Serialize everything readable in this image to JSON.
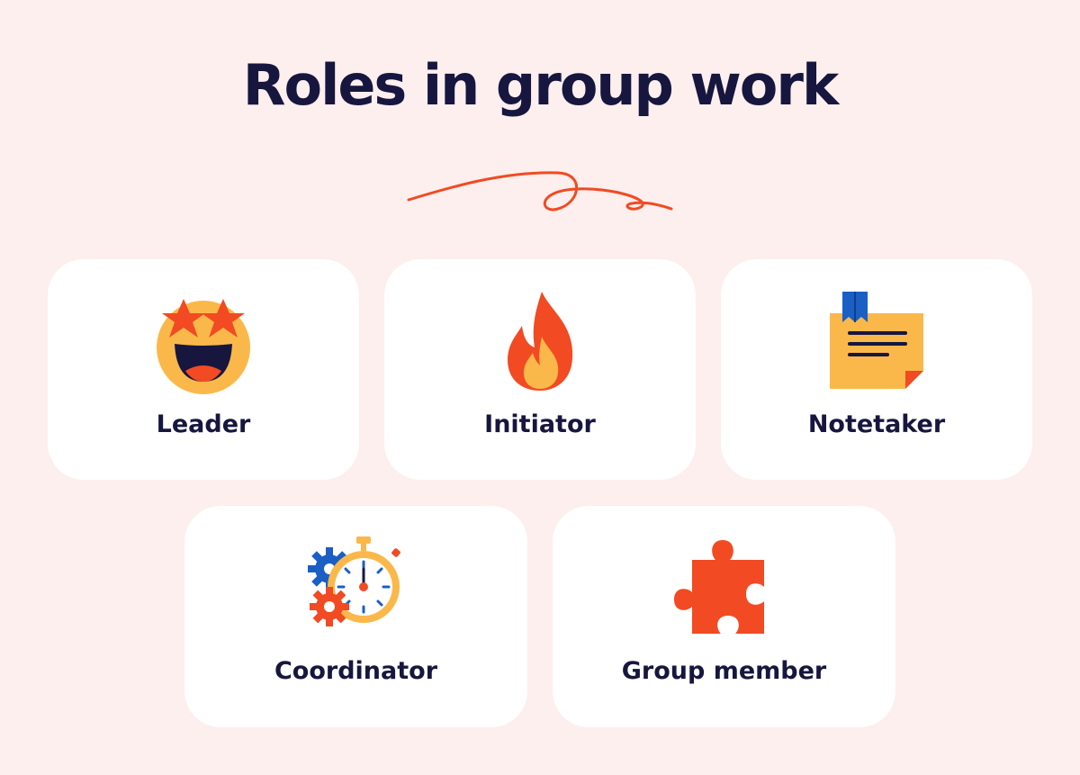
{
  "title": "Roles in group work",
  "roles": [
    {
      "label": "Leader",
      "icon": "star-struck-face-icon"
    },
    {
      "label": "Initiator",
      "icon": "fire-icon"
    },
    {
      "label": "Notetaker",
      "icon": "sticky-note-icon"
    },
    {
      "label": "Coordinator",
      "icon": "gears-stopwatch-icon"
    },
    {
      "label": "Group member",
      "icon": "puzzle-piece-icon"
    }
  ],
  "colors": {
    "background": "#fcefee",
    "card": "#ffffff",
    "title": "#16163f",
    "accent": "#f24a22",
    "yellow": "#fbb84a",
    "blue": "#1a5fc4"
  }
}
